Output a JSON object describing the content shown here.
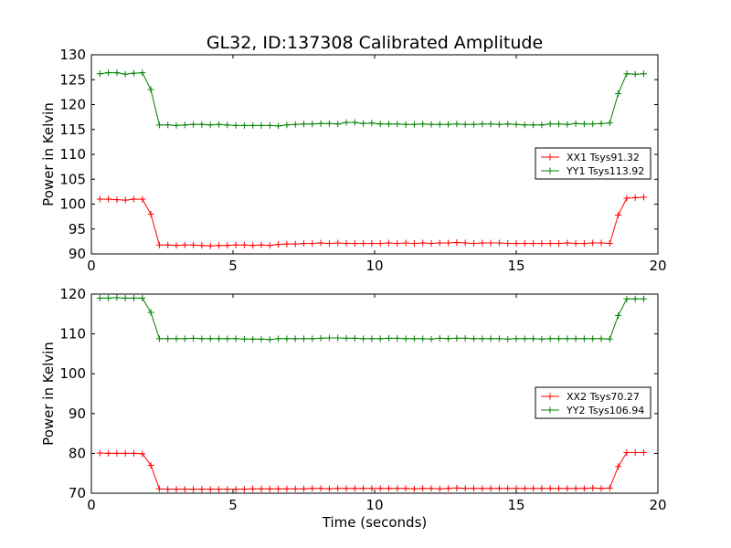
{
  "figure": {
    "title": "GL32, ID:137308 Calibrated Amplitude",
    "xlabel": "Time (seconds)",
    "background": "#ffffff"
  },
  "chart_data": [
    {
      "type": "line",
      "ylabel": "Power in Kelvin",
      "xlim": [
        0,
        20
      ],
      "ylim": [
        90,
        130
      ],
      "xticks": [
        "0",
        "5",
        "10",
        "15",
        "20"
      ],
      "xtick_values": [
        0,
        5,
        10,
        15,
        20
      ],
      "yticks": [
        "90",
        "95",
        "100",
        "105",
        "110",
        "115",
        "120",
        "125",
        "130"
      ],
      "ytick_values": [
        90,
        95,
        100,
        105,
        110,
        115,
        120,
        125,
        130
      ],
      "grid": false,
      "legend": {
        "placement": "center-right"
      },
      "x": [
        0.3,
        0.6,
        0.9,
        1.2,
        1.5,
        1.8,
        2.1,
        2.4,
        2.7,
        3.0,
        3.3,
        3.6,
        3.9,
        4.2,
        4.5,
        4.8,
        5.1,
        5.4,
        5.7,
        6.0,
        6.3,
        6.6,
        6.9,
        7.2,
        7.5,
        7.8,
        8.1,
        8.4,
        8.7,
        9.0,
        9.3,
        9.6,
        9.9,
        10.2,
        10.5,
        10.8,
        11.1,
        11.4,
        11.7,
        12.0,
        12.3,
        12.6,
        12.9,
        13.2,
        13.5,
        13.8,
        14.1,
        14.4,
        14.7,
        15.0,
        15.3,
        15.6,
        15.9,
        16.2,
        16.5,
        16.8,
        17.1,
        17.4,
        17.7,
        18.0,
        18.3,
        18.6,
        18.9,
        19.2,
        19.5
      ],
      "series": [
        {
          "name": "XX1 Tsys91.32",
          "color": "#ff0000",
          "values": [
            101.0,
            101.0,
            100.9,
            100.8,
            101.0,
            101.0,
            98.0,
            91.8,
            91.8,
            91.7,
            91.8,
            91.8,
            91.7,
            91.6,
            91.7,
            91.7,
            91.8,
            91.8,
            91.7,
            91.8,
            91.7,
            91.9,
            92.0,
            92.0,
            92.1,
            92.1,
            92.2,
            92.1,
            92.2,
            92.1,
            92.1,
            92.1,
            92.1,
            92.1,
            92.2,
            92.1,
            92.2,
            92.1,
            92.2,
            92.1,
            92.2,
            92.2,
            92.3,
            92.2,
            92.1,
            92.2,
            92.2,
            92.2,
            92.1,
            92.1,
            92.1,
            92.1,
            92.1,
            92.1,
            92.1,
            92.2,
            92.1,
            92.1,
            92.2,
            92.2,
            92.1,
            97.8,
            101.2,
            101.3,
            101.4
          ]
        },
        {
          "name": "YY1 Tsys113.92",
          "color": "#008000",
          "values": [
            126.2,
            126.4,
            126.4,
            126.1,
            126.3,
            126.4,
            123.0,
            115.9,
            115.9,
            115.8,
            115.9,
            116.0,
            116.0,
            115.9,
            116.0,
            115.9,
            115.8,
            115.8,
            115.8,
            115.8,
            115.8,
            115.7,
            115.9,
            116.0,
            116.1,
            116.1,
            116.2,
            116.2,
            116.1,
            116.4,
            116.4,
            116.2,
            116.3,
            116.1,
            116.1,
            116.1,
            116.0,
            116.0,
            116.1,
            116.0,
            116.0,
            116.0,
            116.1,
            116.0,
            116.0,
            116.1,
            116.1,
            116.0,
            116.1,
            116.0,
            115.9,
            115.9,
            115.9,
            116.1,
            116.1,
            116.0,
            116.2,
            116.1,
            116.1,
            116.2,
            116.3,
            122.2,
            126.2,
            126.1,
            126.2
          ]
        }
      ]
    },
    {
      "type": "line",
      "ylabel": "Power in Kelvin",
      "xlim": [
        0,
        20
      ],
      "ylim": [
        70,
        120
      ],
      "xticks": [
        "0",
        "5",
        "10",
        "15",
        "20"
      ],
      "xtick_values": [
        0,
        5,
        10,
        15,
        20
      ],
      "yticks": [
        "70",
        "80",
        "90",
        "100",
        "110",
        "120"
      ],
      "ytick_values": [
        70,
        80,
        90,
        100,
        110,
        120
      ],
      "grid": false,
      "legend": {
        "placement": "center-right"
      },
      "x": [
        0.3,
        0.6,
        0.9,
        1.2,
        1.5,
        1.8,
        2.1,
        2.4,
        2.7,
        3.0,
        3.3,
        3.6,
        3.9,
        4.2,
        4.5,
        4.8,
        5.1,
        5.4,
        5.7,
        6.0,
        6.3,
        6.6,
        6.9,
        7.2,
        7.5,
        7.8,
        8.1,
        8.4,
        8.7,
        9.0,
        9.3,
        9.6,
        9.9,
        10.2,
        10.5,
        10.8,
        11.1,
        11.4,
        11.7,
        12.0,
        12.3,
        12.6,
        12.9,
        13.2,
        13.5,
        13.8,
        14.1,
        14.4,
        14.7,
        15.0,
        15.3,
        15.6,
        15.9,
        16.2,
        16.5,
        16.8,
        17.1,
        17.4,
        17.7,
        18.0,
        18.3,
        18.6,
        18.9,
        19.2,
        19.5
      ],
      "series": [
        {
          "name": "XX2 Tsys70.27",
          "color": "#ff0000",
          "values": [
            80.1,
            80.0,
            80.0,
            80.0,
            80.0,
            79.9,
            77.0,
            71.1,
            71.0,
            71.0,
            71.0,
            71.0,
            71.0,
            71.0,
            71.0,
            71.0,
            71.0,
            71.0,
            71.1,
            71.1,
            71.1,
            71.1,
            71.1,
            71.1,
            71.1,
            71.2,
            71.2,
            71.1,
            71.2,
            71.2,
            71.2,
            71.2,
            71.2,
            71.2,
            71.2,
            71.2,
            71.2,
            71.1,
            71.2,
            71.2,
            71.1,
            71.2,
            71.3,
            71.2,
            71.2,
            71.2,
            71.2,
            71.2,
            71.2,
            71.2,
            71.2,
            71.2,
            71.2,
            71.2,
            71.2,
            71.2,
            71.2,
            71.2,
            71.3,
            71.2,
            71.3,
            76.7,
            80.2,
            80.2,
            80.2
          ]
        },
        {
          "name": "YY2 Tsys106.94",
          "color": "#008000",
          "values": [
            119.0,
            119.0,
            119.1,
            119.0,
            119.0,
            119.0,
            115.4,
            108.8,
            108.8,
            108.8,
            108.8,
            108.9,
            108.8,
            108.8,
            108.8,
            108.8,
            108.8,
            108.7,
            108.7,
            108.7,
            108.6,
            108.8,
            108.8,
            108.8,
            108.8,
            108.8,
            108.9,
            109.0,
            109.0,
            108.9,
            108.9,
            108.8,
            108.8,
            108.8,
            108.9,
            108.9,
            108.8,
            108.8,
            108.8,
            108.7,
            108.9,
            108.8,
            108.9,
            108.9,
            108.8,
            108.8,
            108.8,
            108.8,
            108.7,
            108.8,
            108.8,
            108.8,
            108.7,
            108.8,
            108.8,
            108.8,
            108.8,
            108.8,
            108.8,
            108.8,
            108.7,
            114.6,
            118.8,
            118.8,
            118.8
          ]
        }
      ]
    }
  ]
}
